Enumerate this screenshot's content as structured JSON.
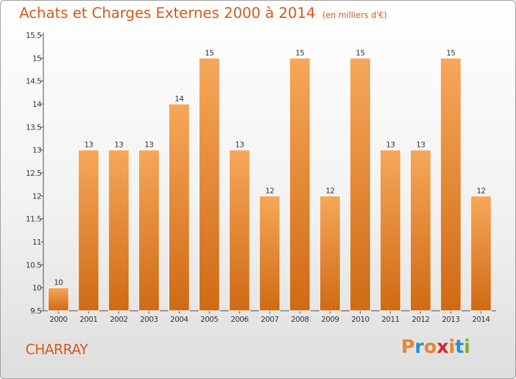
{
  "chart_data": {
    "type": "bar",
    "title": "Achats et Charges Externes 2000 à 2014",
    "subtitle": "(en milliers d'€)",
    "xlabel": "",
    "ylabel": "",
    "categories": [
      "2000",
      "2001",
      "2002",
      "2003",
      "2004",
      "2005",
      "2006",
      "2007",
      "2008",
      "2009",
      "2010",
      "2011",
      "2012",
      "2013",
      "2014"
    ],
    "values": [
      10,
      13,
      13,
      13,
      14,
      15,
      13,
      12,
      15,
      12,
      15,
      13,
      13,
      15,
      12
    ],
    "ylim": [
      9.5,
      15.5
    ],
    "yticks": [
      "9.5",
      "10",
      "10.5",
      "11",
      "11.5",
      "12",
      "12.5",
      "13",
      "13.5",
      "14",
      "14.5",
      "15",
      "15.5"
    ],
    "grid": false,
    "data_labels": true,
    "bar_color": "#e8852e"
  },
  "footer": {
    "city": "CHARRAY",
    "logo": "Proxiti"
  },
  "colors": {
    "title": "#d45a1a",
    "logo_letters": [
      "#e8852e",
      "#2a8fd0",
      "#e8852e",
      "#d4262b",
      "#e8852e",
      "#2a8fd0",
      "#7ab51d"
    ]
  }
}
